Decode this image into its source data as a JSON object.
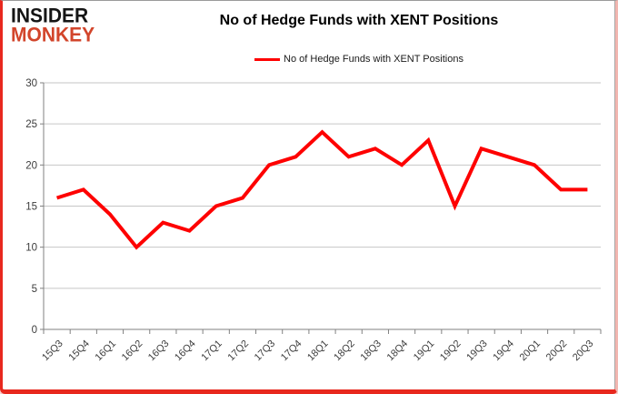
{
  "logo": {
    "line1": "INSIDER",
    "line2": "MONKEY",
    "line1_color": "#151515",
    "line2_color": "#d2452b"
  },
  "header": {
    "title": "No of Hedge Funds with XENT Positions"
  },
  "legend": {
    "label": "No of Hedge Funds with XENT Positions",
    "swatch_color": "#fe0000"
  },
  "chart_data": {
    "type": "line",
    "title": "No of Hedge Funds with XENT Positions",
    "categories": [
      "15Q3",
      "15Q4",
      "16Q1",
      "16Q2",
      "16Q3",
      "16Q4",
      "17Q1",
      "17Q2",
      "17Q3",
      "17Q4",
      "18Q1",
      "18Q2",
      "18Q3",
      "18Q4",
      "19Q1",
      "19Q2",
      "19Q3",
      "19Q4",
      "20Q1",
      "20Q2",
      "20Q3"
    ],
    "series": [
      {
        "name": "No of Hedge Funds with XENT Positions",
        "color": "#fe0000",
        "values": [
          16,
          17,
          14,
          10,
          13,
          12,
          15,
          16,
          20,
          21,
          24,
          21,
          22,
          20,
          23,
          15,
          22,
          21,
          20,
          17,
          17
        ]
      }
    ],
    "xlabel": "",
    "ylabel": "",
    "ylim": [
      0,
      30
    ],
    "ytick_step": 5,
    "yticks": [
      0,
      5,
      10,
      15,
      20,
      25,
      30
    ],
    "grid": true,
    "legend_position": "top",
    "gridline_color": "#c6c6c6",
    "axis_color": "#808080",
    "tick_label_color": "#3c3c3c",
    "line_width": 4
  }
}
